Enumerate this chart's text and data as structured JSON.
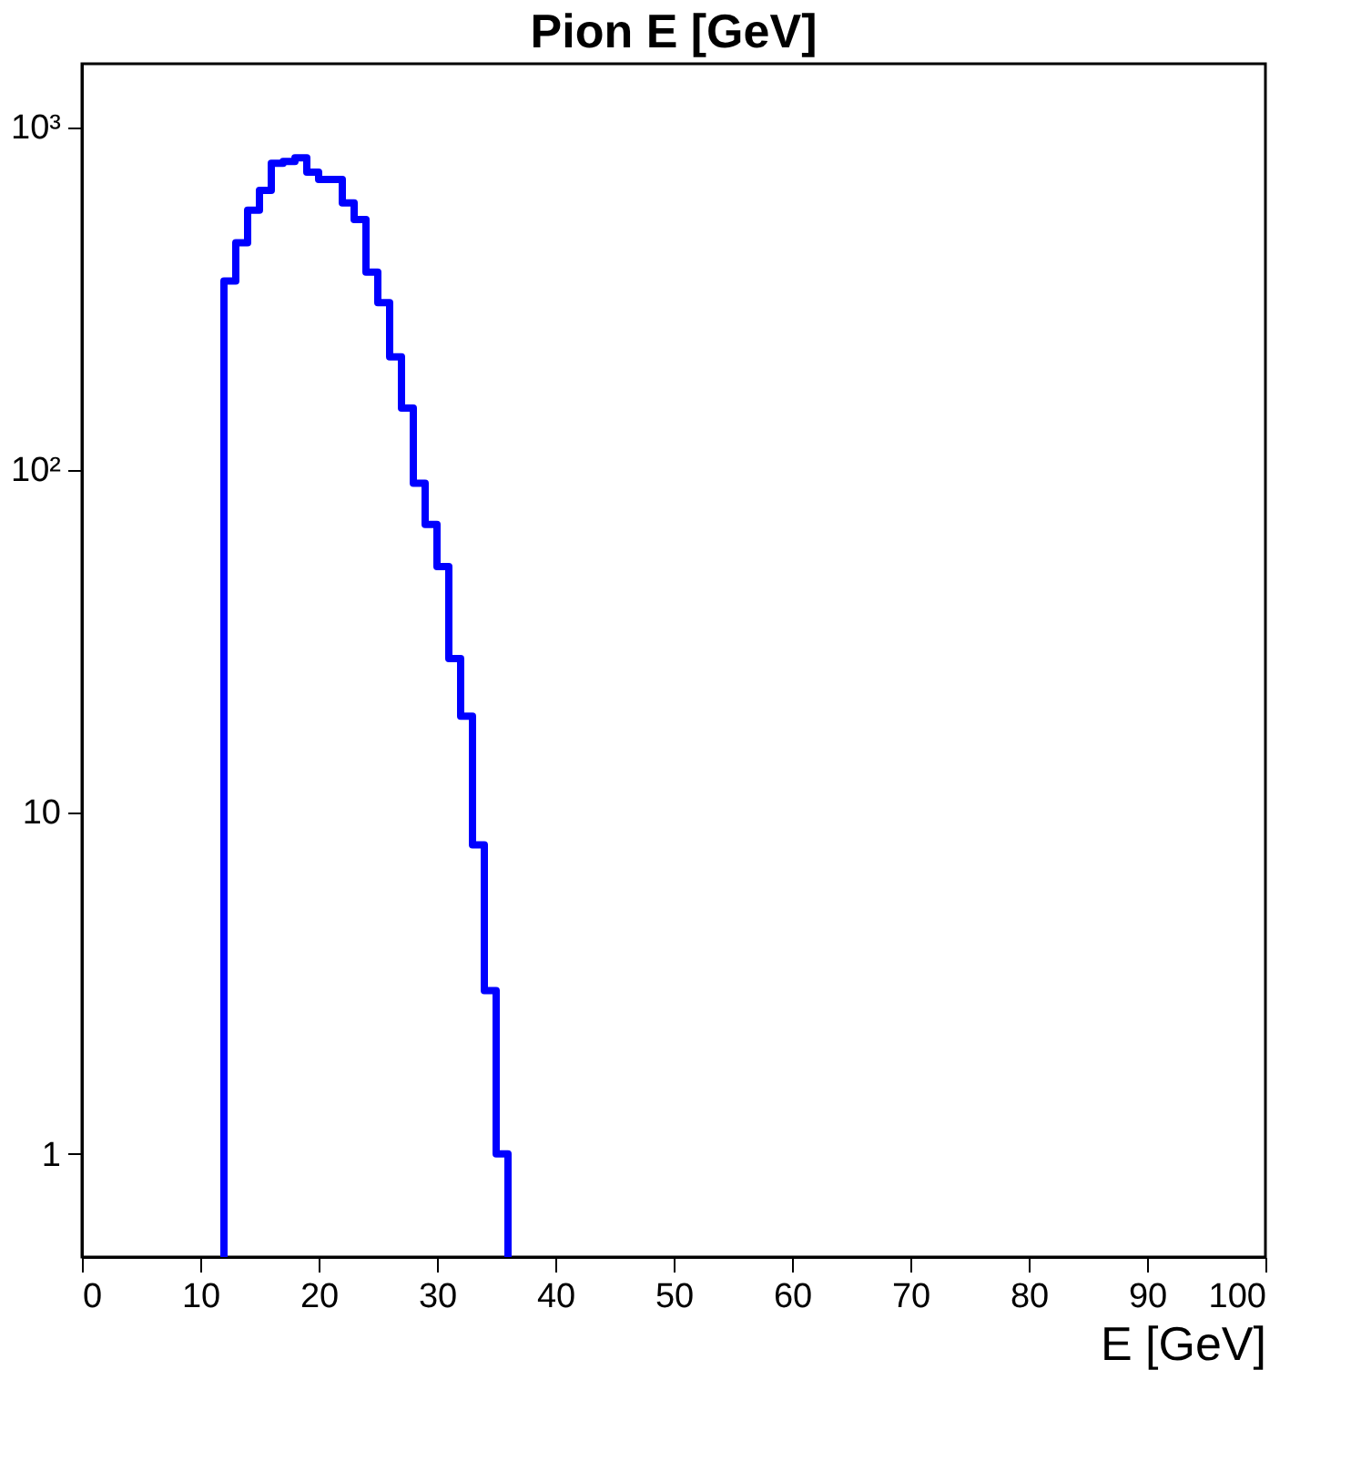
{
  "chart_data": {
    "type": "histogram",
    "title": "Pion E [GeV]",
    "xlabel": "E [GeV]",
    "bins": [
      12,
      13,
      14,
      15,
      16,
      17,
      18,
      19,
      20,
      21,
      22,
      23,
      24,
      25,
      26,
      27,
      28,
      29,
      30,
      31,
      32,
      33,
      34,
      35,
      36
    ],
    "values": [
      355,
      459,
      571,
      653,
      784,
      793,
      813,
      738,
      703,
      703,
      600,
      537,
      377,
      307,
      213,
      151,
      91,
      69,
      52,
      28,
      19,
      8,
      3,
      1
    ],
    "color": "#0000ff",
    "log": true,
    "grid": false,
    "xlim": [
      0,
      100
    ],
    "xticks": [
      0,
      10,
      20,
      30,
      40,
      50,
      60,
      70,
      80,
      90,
      100
    ],
    "ylim": [
      0.5,
      1530
    ],
    "yticks": [
      1,
      10,
      {
        "value": 100,
        "label": "10²"
      },
      {
        "value": 1000,
        "label": "10³"
      }
    ]
  }
}
